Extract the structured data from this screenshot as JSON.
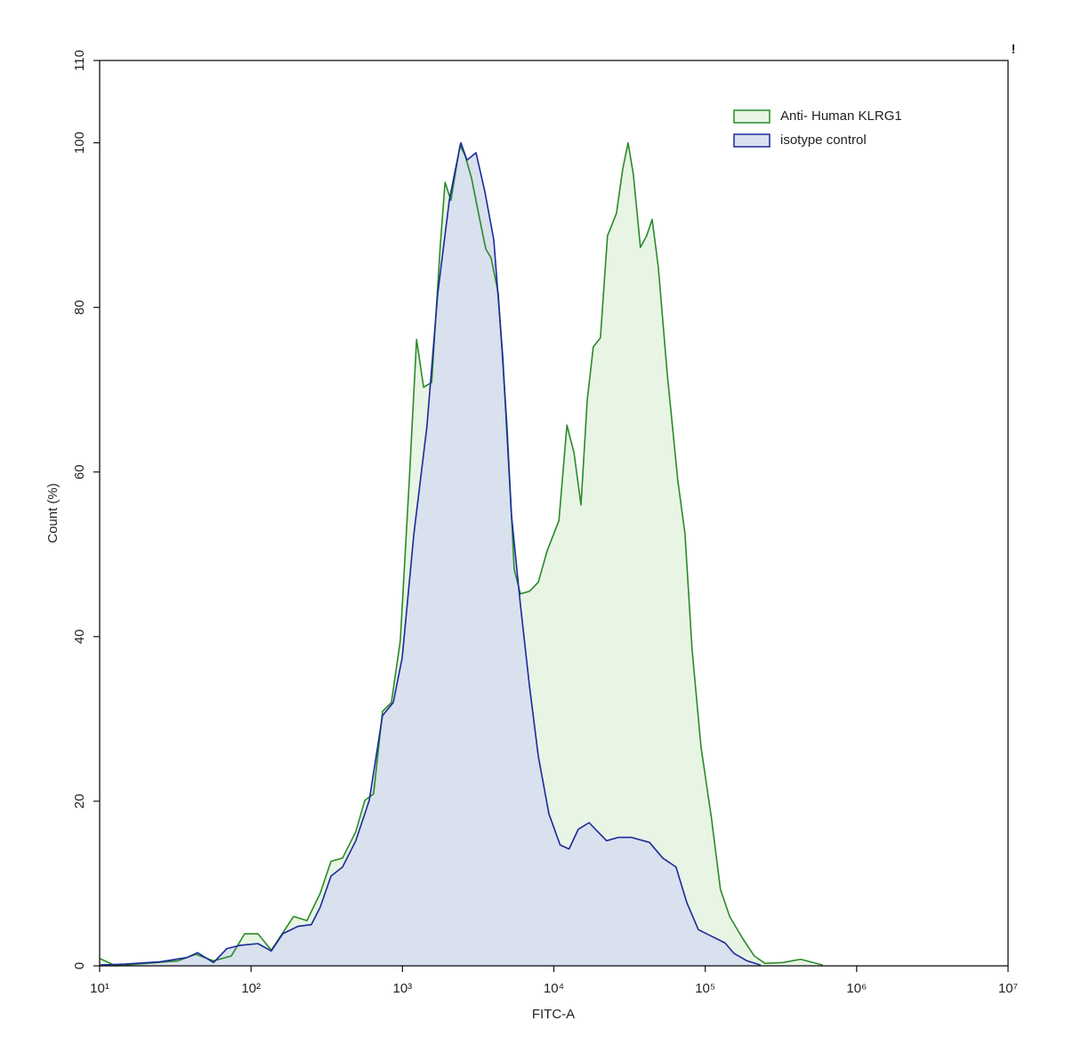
{
  "chart_data": {
    "type": "histogram-overlay",
    "xlabel": "FITC-A",
    "ylabel": "Count (%)",
    "annotation": "!",
    "xscale": "log",
    "xlim": [
      10,
      10000000
    ],
    "xticks": [
      {
        "value": 10,
        "label": "10¹"
      },
      {
        "value": 100,
        "label": "10²"
      },
      {
        "value": 1000,
        "label": "10³"
      },
      {
        "value": 10000,
        "label": "10⁴"
      },
      {
        "value": 100000,
        "label": "10⁵"
      },
      {
        "value": 1000000,
        "label": "10⁶"
      },
      {
        "value": 10000000,
        "label": "10⁷"
      }
    ],
    "ylim": [
      0,
      110
    ],
    "yticks": [
      0,
      20,
      40,
      60,
      80,
      100,
      110
    ],
    "legend": "top-right",
    "series": [
      {
        "name": "Anti- Human KLRG1",
        "color": "#2a8a2a",
        "fill_color": "#e8f4e4",
        "x": [
          10,
          12.8,
          32.9,
          43.1,
          56.5,
          74.1,
          90.8,
          111,
          136,
          191,
          234,
          286,
          337,
          402,
          492,
          564,
          645,
          738,
          845,
          968,
          1110,
          1240,
          1380,
          1560,
          1780,
          1910,
          2090,
          2400,
          2600,
          2860,
          3270,
          3550,
          3850,
          4290,
          4910,
          5470,
          6010,
          6890,
          7890,
          9020,
          10800,
          12200,
          13600,
          15100,
          16600,
          18200,
          20300,
          22600,
          25900,
          28500,
          30900,
          33500,
          37300,
          41000,
          44600,
          49000,
          56100,
          65900,
          73500,
          81800,
          93800,
          110000,
          126000,
          145000,
          177000,
          211000,
          248000,
          325000,
          427000,
          598000
        ],
        "values": [
          0.9,
          0,
          0.6,
          1.4,
          0.6,
          1.2,
          3.9,
          3.9,
          1.9,
          6.0,
          5.5,
          8.8,
          12.7,
          13.1,
          16.3,
          20.1,
          20.9,
          30.9,
          32.0,
          39.5,
          59.0,
          76.1,
          70.3,
          70.9,
          87.6,
          95.2,
          93.0,
          99.7,
          98.4,
          95.7,
          90.3,
          87.1,
          86.0,
          81.7,
          65.5,
          48.2,
          45.2,
          45.5,
          46.6,
          50.4,
          54.1,
          65.7,
          62.3,
          56.0,
          68.7,
          75.2,
          76.3,
          88.7,
          91.4,
          96.8,
          100,
          96.2,
          87.3,
          88.7,
          90.7,
          84.9,
          72.0,
          59.0,
          52.5,
          38.5,
          26.6,
          17.9,
          9.3,
          6.0,
          3.3,
          1.2,
          0.3,
          0.4,
          0.8,
          0.1
        ]
      },
      {
        "name": "isotype control",
        "color": "#1a2a9a",
        "fill_color": "#d9e0ee",
        "x": [
          10,
          14.6,
          25.1,
          37.7,
          44.3,
          56.5,
          69.2,
          84.7,
          111,
          136,
          162,
          204,
          250,
          286,
          337,
          402,
          492,
          603,
          738,
          869,
          995,
          1190,
          1450,
          1710,
          2040,
          2240,
          2430,
          2670,
          3060,
          3500,
          4010,
          4590,
          5250,
          6010,
          6890,
          7890,
          9270,
          11000,
          12600,
          14500,
          17100,
          19500,
          22300,
          26600,
          32600,
          42800,
          52400,
          64100,
          75500,
          90000,
          110000,
          135000,
          155000,
          189000,
          232000
        ],
        "values": [
          0.1,
          0.2,
          0.5,
          1.0,
          1.6,
          0.4,
          2.1,
          2.5,
          2.7,
          1.8,
          3.9,
          4.8,
          5.0,
          7.1,
          10.9,
          12.0,
          15.2,
          20.1,
          30.4,
          32.0,
          37.4,
          52.5,
          65.5,
          81.7,
          93.0,
          96.8,
          100,
          97.9,
          98.8,
          94.1,
          88.2,
          74.1,
          54.7,
          43.9,
          34.1,
          25.5,
          18.5,
          14.7,
          14.2,
          16.6,
          17.4,
          16.3,
          15.2,
          15.6,
          15.6,
          15.0,
          13.1,
          12.0,
          7.7,
          4.4,
          3.6,
          2.8,
          1.5,
          0.6,
          0.1
        ]
      }
    ]
  }
}
